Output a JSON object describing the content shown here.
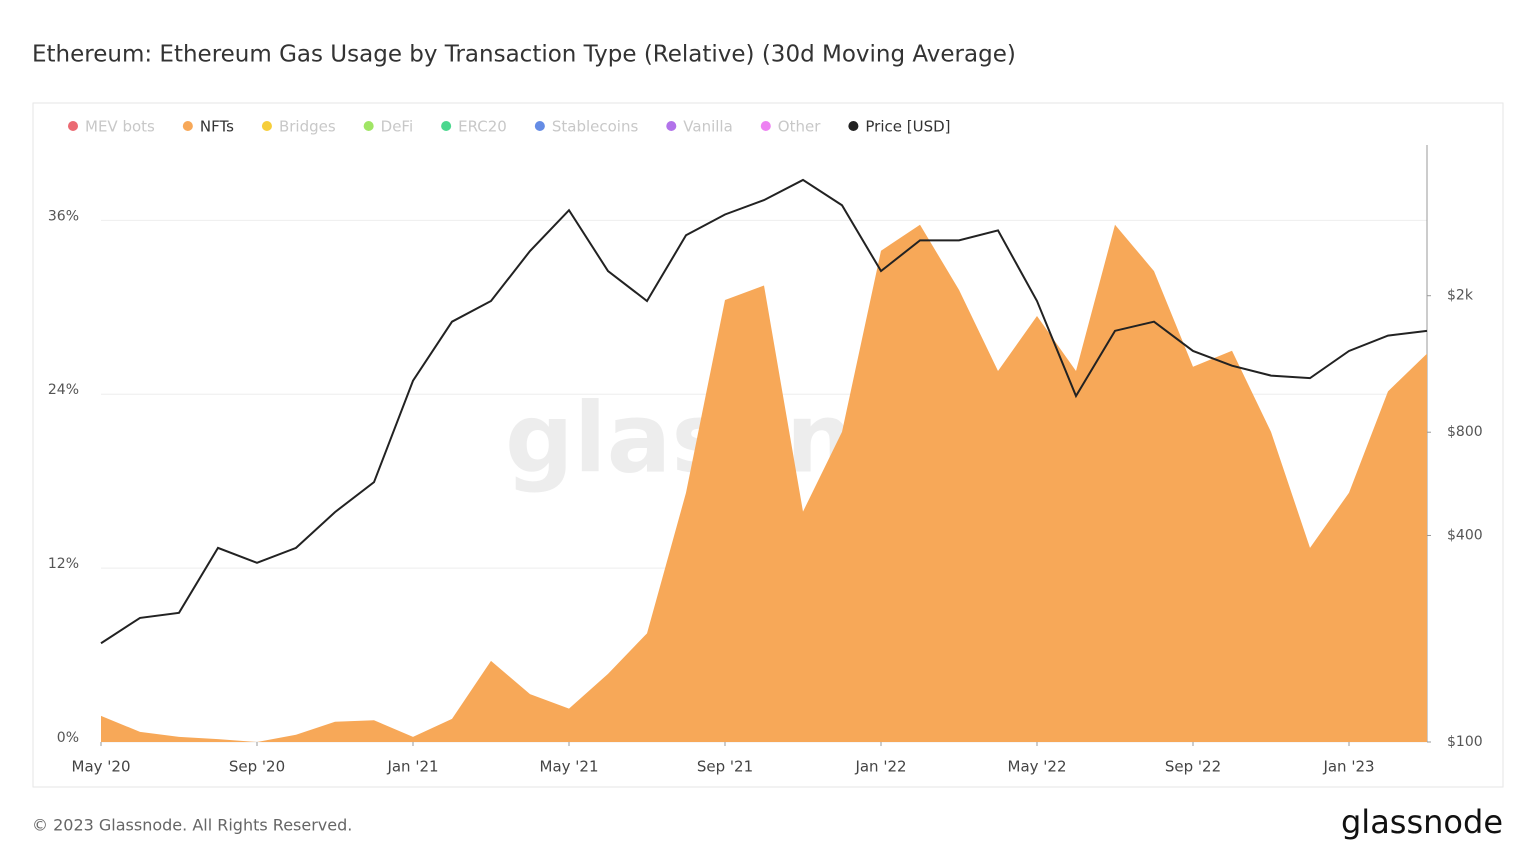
{
  "chart_data": {
    "type": "area_line",
    "title": "Ethereum: Ethereum Gas Usage by Transaction Type (Relative) (30d Moving Average)",
    "footer": "© 2023 Glassnode. All Rights Reserved.",
    "brand": "glassnode",
    "x": [
      "2020-05",
      "2020-06",
      "2020-07",
      "2020-08",
      "2020-09",
      "2020-10",
      "2020-11",
      "2020-12",
      "2021-01",
      "2021-02",
      "2021-03",
      "2021-04",
      "2021-05",
      "2021-06",
      "2021-07",
      "2021-08",
      "2021-09",
      "2021-10",
      "2021-11",
      "2021-12",
      "2022-01",
      "2022-02",
      "2022-03",
      "2022-04",
      "2022-05",
      "2022-06",
      "2022-07",
      "2022-08",
      "2022-09",
      "2022-10",
      "2022-11",
      "2022-12",
      "2023-01",
      "2023-02",
      "2023-03"
    ],
    "xlim": [
      "2020-05",
      "2023-03"
    ],
    "xticks": [
      {
        "value": "2020-05",
        "label": "May '20"
      },
      {
        "value": "2020-09",
        "label": "Sep '20"
      },
      {
        "value": "2021-01",
        "label": "Jan '21"
      },
      {
        "value": "2021-05",
        "label": "May '21"
      },
      {
        "value": "2021-09",
        "label": "Sep '21"
      },
      {
        "value": "2022-01",
        "label": "Jan '22"
      },
      {
        "value": "2022-05",
        "label": "May '22"
      },
      {
        "value": "2022-09",
        "label": "Sep '22"
      },
      {
        "value": "2023-01",
        "label": "Jan '23"
      }
    ],
    "ylim": [
      0,
      41.2
    ],
    "yticks": [
      {
        "value": 0,
        "label": "0%"
      },
      {
        "value": 12,
        "label": "12%"
      },
      {
        "value": 24,
        "label": "24%"
      },
      {
        "value": 36,
        "label": "36%"
      }
    ],
    "y2lim": [
      100,
      5500
    ],
    "y2log": true,
    "y2ticks": [
      {
        "value": 100,
        "label": "$100"
      },
      {
        "value": 400,
        "label": "$400"
      },
      {
        "value": 800,
        "label": "$800"
      },
      {
        "value": 2000,
        "label": "$2k"
      }
    ],
    "grid": true,
    "series": [
      {
        "name": "MEV bots",
        "color": "#e8505b",
        "visible": false
      },
      {
        "name": "NFTs",
        "color": "#f7a858",
        "visible": true,
        "kind": "area",
        "values": [
          1.8,
          0.7,
          0.35,
          0.2,
          0,
          0.5,
          1.4,
          1.5,
          0.35,
          1.6,
          5.6,
          3.3,
          2.3,
          4.7,
          7.5,
          17.2,
          30.5,
          31.5,
          15.9,
          21.4,
          33.9,
          35.7,
          31.2,
          25.6,
          29.4,
          25.6,
          35.7,
          32.5,
          25.9,
          27,
          21.4,
          13.4,
          17.2,
          24.2,
          26.8
        ]
      },
      {
        "name": "Bridges",
        "color": "#f5c518",
        "visible": false
      },
      {
        "name": "DeFi",
        "color": "#8fe04a",
        "visible": false
      },
      {
        "name": "ERC20",
        "color": "#2bd07a",
        "visible": false
      },
      {
        "name": "Stablecoins",
        "color": "#4a78e0",
        "visible": false
      },
      {
        "name": "Vanilla",
        "color": "#a55ae6",
        "visible": false
      },
      {
        "name": "Other",
        "color": "#ea6cf0",
        "visible": false
      },
      {
        "name": "Price [USD]",
        "color": "#222222",
        "visible": true,
        "kind": "line",
        "axis": "y2",
        "values": [
          194,
          230,
          238,
          368,
          333,
          368,
          468,
          572,
          1130,
          1680,
          1930,
          2700,
          3550,
          2360,
          1930,
          3000,
          3450,
          3800,
          4350,
          3670,
          2360,
          2900,
          2900,
          3100,
          1930,
          1020,
          1580,
          1680,
          1380,
          1250,
          1170,
          1150,
          1380,
          1530,
          1580
        ]
      }
    ]
  }
}
